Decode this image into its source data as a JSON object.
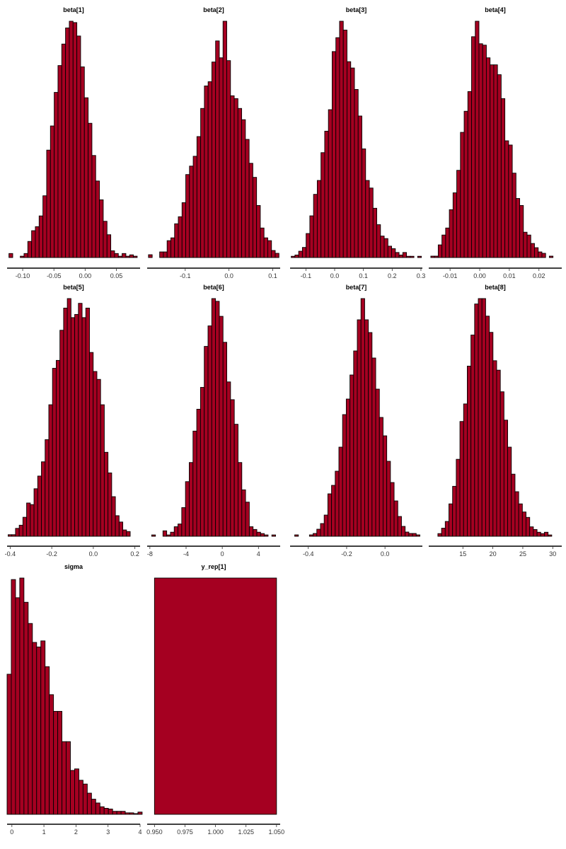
{
  "chart_data": {
    "type": "bar",
    "subtype": "histogram-grid",
    "bar_color": "#a50021",
    "bar_stroke": "#000000",
    "background": "#ffffff",
    "grid": false,
    "panels": [
      {
        "title": "beta[1]",
        "xlim": [
          -0.125,
          0.088
        ],
        "ticks": [
          {
            "v": -0.1,
            "label": "-0.10"
          },
          {
            "v": -0.05,
            "label": "-0.05"
          },
          {
            "v": 0.0,
            "label": "0.00"
          },
          {
            "v": 0.05,
            "label": "0.05"
          }
        ],
        "bins": {
          "start": -0.122,
          "width": 0.00604
        },
        "counts": [
          3,
          0,
          0,
          1,
          3,
          12,
          20,
          23,
          31,
          46,
          80,
          98,
          123,
          143,
          159,
          171,
          176,
          175,
          165,
          142,
          119,
          100,
          76,
          57,
          43,
          27,
          17,
          5,
          3,
          1,
          3,
          1,
          2,
          1,
          0
        ]
      },
      {
        "title": "beta[2]",
        "xlim": [
          -0.187,
          0.117
        ],
        "ticks": [
          {
            "v": -0.1,
            "label": "-0.1"
          },
          {
            "v": 0.0,
            "label": "0.0"
          },
          {
            "v": 0.1,
            "label": "0.1"
          }
        ],
        "bins": {
          "start": -0.184,
          "width": 0.00852
        },
        "counts": [
          2,
          0,
          0,
          4,
          4,
          12,
          14,
          24,
          29,
          39,
          59,
          65,
          72,
          86,
          106,
          122,
          125,
          139,
          154,
          142,
          168,
          140,
          115,
          113,
          106,
          98,
          84,
          67,
          57,
          37,
          21,
          14,
          12,
          5,
          3
        ]
      },
      {
        "title": "beta[3]",
        "xlim": [
          -0.155,
          0.305
        ],
        "ticks": [
          {
            "v": -0.1,
            "label": "-0.1"
          },
          {
            "v": 0.0,
            "label": "0.0"
          },
          {
            "v": 0.1,
            "label": "0.1"
          },
          {
            "v": 0.2,
            "label": "0.2"
          },
          {
            "v": 0.3,
            "label": "0.3"
          }
        ],
        "bins": {
          "start": -0.151,
          "width": 0.01293
        },
        "counts": [
          1,
          2,
          5,
          8,
          19,
          33,
          50,
          61,
          83,
          100,
          117,
          163,
          174,
          187,
          180,
          155,
          150,
          133,
          112,
          86,
          61,
          55,
          39,
          26,
          17,
          15,
          9,
          7,
          4,
          2,
          4,
          1,
          1,
          0,
          1
        ]
      },
      {
        "title": "beta[4]",
        "xlim": [
          -0.0172,
          0.0277
        ],
        "ticks": [
          {
            "v": -0.01,
            "label": "-0.01"
          },
          {
            "v": 0.0,
            "label": "0.00"
          },
          {
            "v": 0.01,
            "label": "0.01"
          },
          {
            "v": 0.02,
            "label": "0.02"
          }
        ],
        "bins": {
          "start": -0.0165,
          "width": 0.00125
        },
        "counts": [
          1,
          1,
          9,
          16,
          21,
          34,
          46,
          62,
          89,
          104,
          118,
          157,
          168,
          152,
          151,
          142,
          137,
          137,
          130,
          113,
          83,
          80,
          60,
          42,
          37,
          18,
          16,
          10,
          7,
          4,
          3,
          0,
          1,
          0
        ]
      },
      {
        "title": "beta[5]",
        "xlim": [
          -0.415,
          0.225
        ],
        "ticks": [
          {
            "v": -0.4,
            "label": "-0.4"
          },
          {
            "v": -0.2,
            "label": "-0.2"
          },
          {
            "v": 0.0,
            "label": "0.0"
          },
          {
            "v": 0.2,
            "label": "0.2"
          }
        ],
        "bins": {
          "start": -0.41,
          "width": 0.0178
        },
        "counts": [
          1,
          1,
          5,
          7,
          12,
          21,
          20,
          30,
          38,
          47,
          61,
          83,
          106,
          111,
          130,
          144,
          150,
          138,
          140,
          147,
          138,
          144,
          116,
          104,
          99,
          83,
          53,
          40,
          25,
          13,
          9,
          4,
          3,
          0,
          0,
          0
        ]
      },
      {
        "title": "beta[6]",
        "xlim": [
          -8.3,
          6.4
        ],
        "ticks": [
          {
            "v": -8,
            "label": "-8"
          },
          {
            "v": -4,
            "label": "-4"
          },
          {
            "v": 0,
            "label": "0"
          },
          {
            "v": 4,
            "label": "4"
          }
        ],
        "bins": {
          "start": -7.8,
          "width": 0.415
        },
        "counts": [
          1,
          0,
          0,
          4,
          1,
          3,
          7,
          9,
          21,
          40,
          54,
          77,
          93,
          109,
          139,
          154,
          174,
          172,
          161,
          142,
          113,
          100,
          82,
          54,
          34,
          25,
          7,
          5,
          3,
          2,
          1,
          0,
          1,
          0,
          0
        ]
      },
      {
        "title": "beta[7]",
        "xlim": [
          -0.495,
          0.195
        ],
        "ticks": [
          {
            "v": -0.4,
            "label": "-0.4"
          },
          {
            "v": -0.2,
            "label": "-0.2"
          },
          {
            "v": 0.0,
            "label": "0.0"
          }
        ],
        "bins": {
          "start": -0.49,
          "width": 0.0192
        },
        "counts": [
          0,
          1,
          0,
          0,
          0,
          1,
          2,
          5,
          9,
          15,
          30,
          36,
          46,
          63,
          86,
          97,
          114,
          131,
          153,
          168,
          153,
          144,
          126,
          104,
          84,
          71,
          53,
          38,
          25,
          14,
          7,
          3,
          2,
          2,
          1,
          0
        ]
      },
      {
        "title": "beta[8]",
        "xlim": [
          9.3,
          31.5
        ],
        "ticks": [
          {
            "v": 15,
            "label": "15"
          },
          {
            "v": 20,
            "label": "20"
          },
          {
            "v": 25,
            "label": "25"
          },
          {
            "v": 30,
            "label": "30"
          }
        ],
        "bins": {
          "start": 9.6,
          "width": 0.613
        },
        "counts": [
          0,
          0,
          2,
          6,
          11,
          24,
          37,
          57,
          85,
          98,
          126,
          149,
          172,
          176,
          176,
          163,
          151,
          130,
          123,
          107,
          86,
          66,
          46,
          33,
          24,
          18,
          14,
          7,
          5,
          3,
          2,
          3,
          1,
          0,
          0
        ]
      },
      {
        "title": "sigma",
        "xlim": [
          -0.15,
          4.0
        ],
        "ticks": [
          {
            "v": 0,
            "label": "0"
          },
          {
            "v": 1,
            "label": "1"
          },
          {
            "v": 2,
            "label": "2"
          },
          {
            "v": 3,
            "label": "3"
          },
          {
            "v": 4,
            "label": "4"
          }
        ],
        "bins": {
          "start": -0.15,
          "width": 0.1317
        },
        "counts": [
          185,
          310,
          286,
          312,
          280,
          252,
          227,
          221,
          229,
          195,
          158,
          136,
          136,
          96,
          96,
          58,
          60,
          45,
          40,
          28,
          20,
          15,
          10,
          8,
          7,
          4,
          4,
          4,
          2,
          2,
          1,
          3
        ]
      },
      {
        "title": "y_rep[1]",
        "xlim": [
          0.944,
          1.053
        ],
        "ticks": [
          {
            "v": 0.95,
            "label": "0.950"
          },
          {
            "v": 0.975,
            "label": "0.975"
          },
          {
            "v": 1.0,
            "label": "1.000"
          },
          {
            "v": 1.025,
            "label": "1.025"
          },
          {
            "v": 1.05,
            "label": "1.050"
          }
        ],
        "bins": {
          "start": 0.95,
          "width": 0.1
        },
        "counts": [
          4000
        ]
      }
    ]
  }
}
